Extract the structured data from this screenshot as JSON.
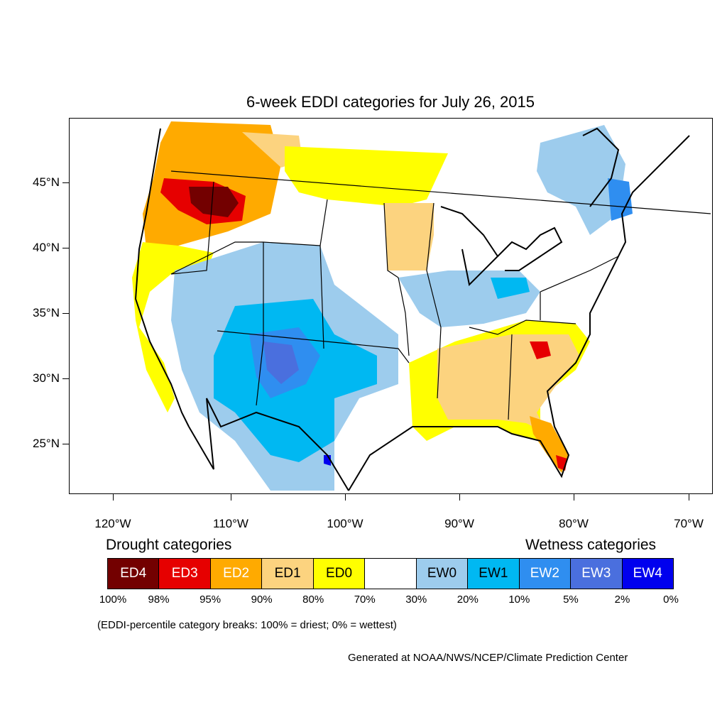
{
  "map": {
    "title": "6-week EDDI categories for July 26, 2015",
    "lat_ticks": [
      "45°N",
      "40°N",
      "35°N",
      "30°N",
      "25°N"
    ],
    "lon_ticks": [
      "120°W",
      "110°W",
      "100°W",
      "90°W",
      "80°W",
      "70°W"
    ],
    "region": "Contiguous United States",
    "date": "July 26, 2015"
  },
  "legend": {
    "drought_title": "Drought categories",
    "wetness_title": "Wetness categories",
    "categories": [
      {
        "label": "ED4",
        "color": "#730000",
        "text_color": "#ffffff"
      },
      {
        "label": "ED3",
        "color": "#e60000",
        "text_color": "#ffffff"
      },
      {
        "label": "ED2",
        "color": "#ffaa00",
        "text_color": "#ffffff"
      },
      {
        "label": "ED1",
        "color": "#fcd37f",
        "text_color": "#000000"
      },
      {
        "label": "ED0",
        "color": "#ffff00",
        "text_color": "#000000"
      },
      {
        "label": "",
        "color": "#ffffff",
        "text_color": "#000000"
      },
      {
        "label": "EW0",
        "color": "#9dcced",
        "text_color": "#000000"
      },
      {
        "label": "EW1",
        "color": "#00b8f2",
        "text_color": "#000000"
      },
      {
        "label": "EW2",
        "color": "#2f8ef0",
        "text_color": "#ffffff"
      },
      {
        "label": "EW3",
        "color": "#4a6fde",
        "text_color": "#ffffff"
      },
      {
        "label": "EW4",
        "color": "#0000ee",
        "text_color": "#ffffff"
      }
    ],
    "breaks": [
      "100%",
      "98%",
      "95%",
      "90%",
      "80%",
      "70%",
      "30%",
      "20%",
      "10%",
      "5%",
      "2%",
      "0%"
    ],
    "note": "(EDDI-percentile category breaks: 100% = driest; 0% = wettest)"
  },
  "credit": "Generated at NOAA/NWS/NCEP/Climate Prediction Center"
}
